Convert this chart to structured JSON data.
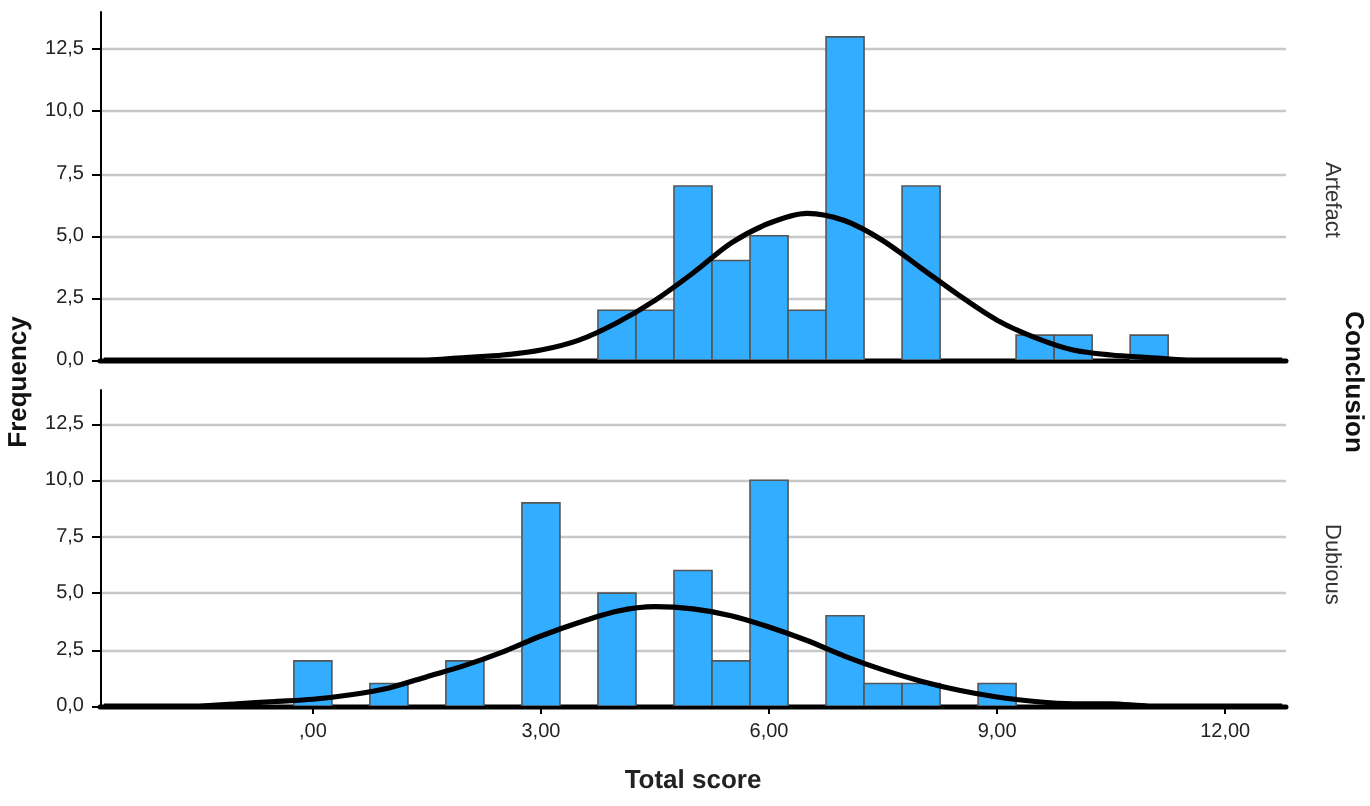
{
  "chart_data": [
    {
      "type": "histogram",
      "ylabel": "Frequency",
      "y2label": "Artefact",
      "annotations": [
        "Conclusion"
      ],
      "bins": [
        3.75,
        4.25,
        4.75,
        5.25,
        5.75,
        6.25,
        6.75,
        7.25,
        7.75,
        8.25,
        8.75,
        9.25,
        9.75,
        10.25,
        10.75,
        11.25
      ],
      "values": [
        2,
        2,
        7,
        4,
        5,
        2,
        13,
        0,
        7,
        0,
        0,
        1,
        1,
        0,
        1
      ],
      "color": "#33adff",
      "series": [
        {
          "type": "line",
          "color": "#000000",
          "x": [
            -2.75,
            1,
            1.5,
            2,
            2.5,
            3,
            3.5,
            4,
            4.5,
            5,
            5.5,
            6,
            6.5,
            7,
            7.5,
            8,
            8.5,
            9,
            9.5,
            10,
            10.5,
            11,
            11.5,
            12.75
          ],
          "values": [
            0,
            0,
            0,
            0.1,
            0.2,
            0.4,
            0.8,
            1.5,
            2.4,
            3.5,
            4.7,
            5.5,
            5.9,
            5.6,
            4.8,
            3.7,
            2.6,
            1.6,
            0.9,
            0.4,
            0.2,
            0.1,
            0,
            0
          ]
        }
      ],
      "xlim": [
        -2.8,
        12.8
      ],
      "ylim": [
        0,
        14
      ],
      "yticks": [
        {
          "value": 0,
          "label": "0,0"
        },
        {
          "value": 2.5,
          "label": "2,5"
        },
        {
          "value": 5,
          "label": "5,0"
        },
        {
          "value": 7.5,
          "label": "7,5"
        },
        {
          "value": 10,
          "label": "10,0"
        },
        {
          "value": 12.5,
          "label": "12,5"
        }
      ],
      "tick_labels": "y",
      "grid": "y"
    },
    {
      "type": "histogram",
      "xlabel": "Total score",
      "y2label": "Dubious",
      "bins": [
        -0.25,
        0.25,
        0.75,
        1.25,
        1.75,
        2.25,
        2.75,
        3.25,
        3.75,
        4.25,
        4.75,
        5.25,
        5.75,
        6.25,
        6.75,
        7.25,
        7.75,
        8.25,
        8.75,
        9.25
      ],
      "values": [
        2,
        0,
        1,
        0,
        2,
        0,
        9,
        0,
        5,
        0,
        6,
        2,
        10,
        0,
        4,
        1,
        1,
        0,
        1
      ],
      "color": "#33adff",
      "series": [
        {
          "type": "line",
          "color": "#000000",
          "x": [
            -2.75,
            -1.5,
            -1,
            -0.5,
            0,
            0.5,
            1,
            1.5,
            2,
            2.5,
            3,
            3.5,
            4,
            4.5,
            5,
            5.5,
            6,
            6.5,
            7,
            7.5,
            8,
            8.5,
            9,
            9.5,
            10,
            10.5,
            11,
            12.75
          ],
          "values": [
            0,
            0,
            0.1,
            0.2,
            0.3,
            0.5,
            0.8,
            1.3,
            1.8,
            2.4,
            3.1,
            3.7,
            4.2,
            4.4,
            4.3,
            4,
            3.5,
            2.9,
            2.2,
            1.6,
            1.1,
            0.7,
            0.4,
            0.2,
            0.1,
            0.1,
            0,
            0
          ]
        }
      ],
      "xlim": [
        -2.8,
        12.8
      ],
      "xticks": [
        {
          "value": 0,
          "label": ",00"
        },
        {
          "value": 3,
          "label": "3,00"
        },
        {
          "value": 6,
          "label": "6,00"
        },
        {
          "value": 9,
          "label": "9,00"
        },
        {
          "value": 12,
          "label": "12,00"
        }
      ],
      "ylim": [
        0,
        14
      ],
      "yticks": [
        {
          "value": 0,
          "label": "0,0"
        },
        {
          "value": 2.5,
          "label": "2,5"
        },
        {
          "value": 5,
          "label": "5,0"
        },
        {
          "value": 7.5,
          "label": "7,5"
        },
        {
          "value": 10,
          "label": "10,0"
        },
        {
          "value": 12.5,
          "label": "12,5"
        }
      ],
      "grid": "y"
    }
  ]
}
